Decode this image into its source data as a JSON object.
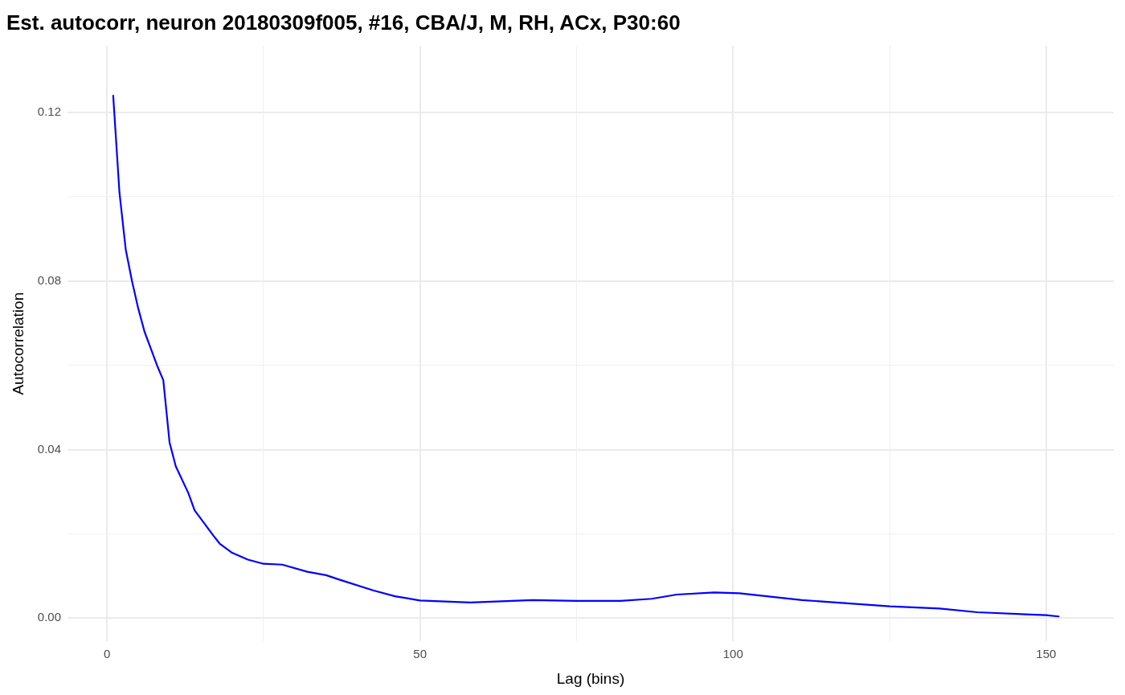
{
  "chart_data": {
    "type": "line",
    "title": "Est. autocorr, neuron 20180309f005, #16, CBA/J, M, RH, ACx, P30:60",
    "xlabel": "Lag (bins)",
    "ylabel": "Autocorrelation",
    "x": [
      1,
      2,
      3,
      4,
      5,
      6,
      7,
      8,
      9,
      10,
      11,
      13,
      14,
      17,
      18,
      20,
      22.5,
      25,
      28,
      32,
      35,
      37,
      42.5,
      46,
      50,
      58,
      68,
      75,
      82,
      87,
      91,
      97,
      101,
      111,
      125,
      133,
      139,
      150,
      152
    ],
    "series": [
      {
        "color": "#0000ff",
        "values": [
          0.124,
          0.101,
          0.0875,
          0.08,
          0.0735,
          0.068,
          0.064,
          0.06,
          0.0565,
          0.0417,
          0.036,
          0.0297,
          0.0256,
          0.0196,
          0.0177,
          0.0155,
          0.0139,
          0.0129,
          0.0127,
          0.011,
          0.0102,
          0.0092,
          0.0066,
          0.0052,
          0.0042,
          0.0037,
          0.0043,
          0.0041,
          0.0041,
          0.0046,
          0.0056,
          0.0061,
          0.0059,
          0.0043,
          0.0028,
          0.0023,
          0.0014,
          0.0007,
          0.0004
        ]
      }
    ],
    "xlim": [
      -6.3,
      160.8
    ],
    "ylim": [
      -0.0055,
      0.1358
    ],
    "xticks": [
      0,
      {
        "value": 25,
        "label": null
      },
      50,
      {
        "value": 75,
        "label": null
      },
      100,
      {
        "value": 125,
        "label": null
      },
      150
    ],
    "yticks": [
      {
        "value": 0,
        "label": "0.00"
      },
      {
        "value": 0.02,
        "label": null
      },
      {
        "value": 0.04,
        "label": "0.04"
      },
      {
        "value": 0.06,
        "label": null
      },
      {
        "value": 0.08,
        "label": "0.08"
      },
      {
        "value": 0.1,
        "label": null
      },
      {
        "value": 0.12,
        "label": "0.12"
      }
    ],
    "grid": true,
    "legend": false,
    "marker": "none",
    "line_style": "solid"
  }
}
